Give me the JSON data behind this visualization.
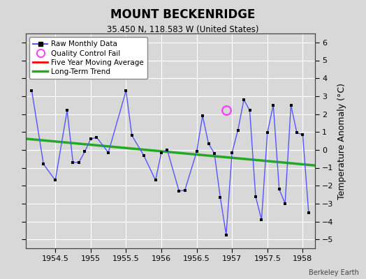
{
  "title": "MOUNT BECKENRIDGE",
  "subtitle": "35.450 N, 118.583 W (United States)",
  "ylabel_right": "Temperature Anomaly (°C)",
  "watermark": "Berkeley Earth",
  "xlim": [
    1954.08,
    1958.17
  ],
  "ylim": [
    -5.5,
    6.5
  ],
  "yticks": [
    -5,
    -4,
    -3,
    -2,
    -1,
    0,
    1,
    2,
    3,
    4,
    5,
    6
  ],
  "xticks": [
    1954.5,
    1955.0,
    1955.5,
    1956.0,
    1956.5,
    1957.0,
    1957.5,
    1958.0
  ],
  "xticklabels": [
    "1954.5",
    "1955",
    "1955.5",
    "1956",
    "1956.5",
    "1957",
    "1957.5",
    "1958"
  ],
  "background_color": "#d8d8d8",
  "plot_bg_color": "#d8d8d8",
  "raw_data_x": [
    1954.167,
    1954.333,
    1954.5,
    1954.667,
    1954.75,
    1954.833,
    1954.917,
    1955.0,
    1955.083,
    1955.25,
    1955.5,
    1955.583,
    1955.75,
    1955.917,
    1956.0,
    1956.083,
    1956.25,
    1956.333,
    1956.5,
    1956.583,
    1956.667,
    1956.75,
    1956.833,
    1956.917,
    1957.0,
    1957.083,
    1957.167,
    1957.25,
    1957.333,
    1957.417,
    1957.5,
    1957.583,
    1957.667,
    1957.75,
    1957.833,
    1957.917,
    1958.0,
    1958.083
  ],
  "raw_data_y": [
    3.3,
    -0.8,
    -1.7,
    2.2,
    -0.7,
    -0.7,
    -0.1,
    0.6,
    0.7,
    -0.15,
    3.3,
    0.8,
    -0.3,
    -1.7,
    -0.15,
    0.0,
    -2.3,
    -2.25,
    -0.1,
    1.9,
    0.35,
    -0.2,
    -2.65,
    -4.75,
    -0.15,
    1.1,
    2.8,
    2.2,
    -2.6,
    -3.9,
    0.95,
    2.5,
    -2.2,
    -3.0,
    2.5,
    0.95,
    0.85,
    -3.5
  ],
  "qc_fail_x": [
    1956.917
  ],
  "qc_fail_y": [
    2.2
  ],
  "trend_x": [
    1954.08,
    1958.17
  ],
  "trend_y": [
    0.62,
    -0.87
  ],
  "raw_line_color": "#5555ff",
  "raw_marker_color": "#000000",
  "qc_color": "#ff44ff",
  "trend_color": "#22aa22",
  "mavg_color": "#ff0000"
}
